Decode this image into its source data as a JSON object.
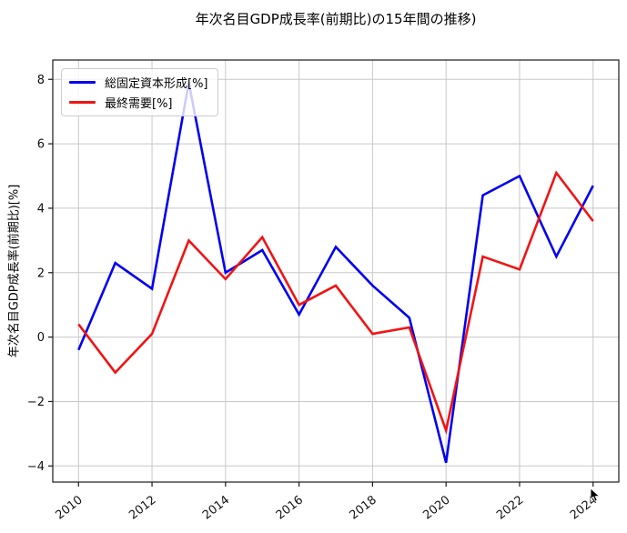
{
  "title": "年次名目GDP成長率(前期比)の15年間の推移)",
  "chart_data": {
    "type": "line",
    "title": "年次名目GDP成長率(前期比)の15年間の推移)",
    "xlabel": "",
    "ylabel": "年次名目GDP成長率(前期比)[%]",
    "x": [
      2010,
      2011,
      2012,
      2013,
      2014,
      2015,
      2016,
      2017,
      2018,
      2019,
      2020,
      2021,
      2022,
      2023,
      2024
    ],
    "series": [
      {
        "name": "総固定資本形成[%]",
        "color": "#0202f0",
        "values": [
          -0.4,
          2.3,
          1.5,
          7.9,
          2.0,
          2.7,
          0.7,
          2.8,
          1.6,
          0.6,
          -3.9,
          4.4,
          5.0,
          2.5,
          4.7
        ]
      },
      {
        "name": "最終需要[%]",
        "color": "#f01414",
        "values": [
          0.4,
          -1.1,
          0.1,
          3.0,
          1.8,
          3.1,
          1.0,
          1.6,
          0.1,
          0.3,
          -2.9,
          2.5,
          2.1,
          5.1,
          3.6
        ]
      }
    ],
    "x_ticks": [
      2010,
      2012,
      2014,
      2016,
      2018,
      2020,
      2022,
      2024
    ],
    "x_tick_labels": [
      "2010",
      "2012",
      "2014",
      "2016",
      "2018",
      "2020",
      "2022",
      "2024"
    ],
    "y_ticks": [
      8,
      6,
      4,
      2,
      0,
      -2,
      -4
    ],
    "y_tick_labels": [
      "8",
      "6",
      "4",
      "2",
      "0",
      "−2",
      "−4"
    ],
    "xlim": [
      2009.3,
      2024.7
    ],
    "ylim": [
      -4.5,
      8.6
    ],
    "grid": true,
    "grid_color": "#c8c8c8",
    "spine_color": "#1a1a1a",
    "tick_label_color": "#111111",
    "legend_position": "upper left"
  }
}
